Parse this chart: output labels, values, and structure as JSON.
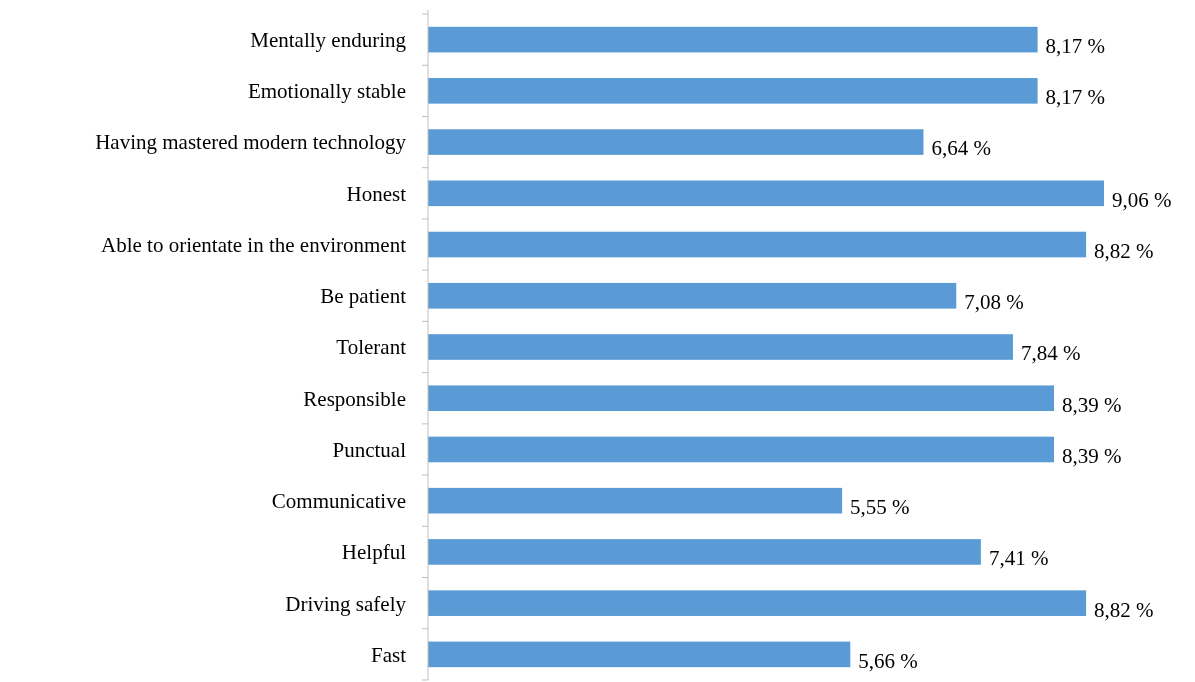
{
  "chart_data": {
    "type": "bar",
    "orientation": "horizontal",
    "categories": [
      "Mentally enduring",
      "Emotionally stable",
      "Having mastered modern technology",
      "Honest",
      "Able to orientate in the environment",
      "Be patient",
      "Tolerant",
      "Responsible",
      "Punctual",
      "Communicative",
      "Helpful",
      "Driving safely",
      "Fast"
    ],
    "values": [
      8.17,
      8.17,
      6.64,
      9.06,
      8.82,
      7.08,
      7.84,
      8.39,
      8.39,
      5.55,
      7.41,
      8.82,
      5.66
    ],
    "value_labels": [
      "8,17 %",
      "8,17 %",
      "6,64 %",
      "9,06 %",
      "8,82 %",
      "7,08 %",
      "7,84 %",
      "8,39 %",
      "8,39 %",
      "5,55 %",
      "7,41 %",
      "8,82 %",
      "5,66 %"
    ],
    "color": "#5b9bd5",
    "tick_labels": "y"
  }
}
